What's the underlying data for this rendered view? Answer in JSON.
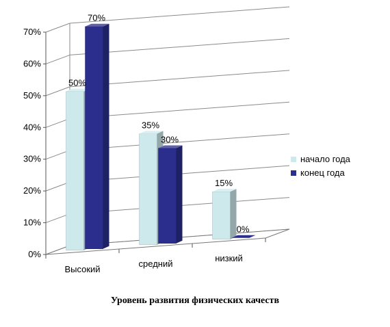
{
  "chart_data": {
    "type": "bar",
    "title": "Уровень развития физических  качеств",
    "categories": [
      "Высокий",
      "средний",
      "низкий"
    ],
    "series": [
      {
        "name": "начало года",
        "values": [
          50,
          35,
          15
        ],
        "labels": [
          "50%",
          "35%",
          "15%"
        ],
        "color": "#cde9ec"
      },
      {
        "name": "конец года",
        "values": [
          70,
          30,
          0
        ],
        "labels": [
          "70%",
          "30%",
          "0%"
        ],
        "color": "#2b2e8c"
      }
    ],
    "yticks": [
      "0%",
      "10%",
      "20%",
      "30%",
      "40%",
      "50%",
      "60%",
      "70%"
    ],
    "ylim": [
      0,
      70
    ],
    "legend_position": "right",
    "grid": true,
    "style": "3d-clustered-column"
  }
}
